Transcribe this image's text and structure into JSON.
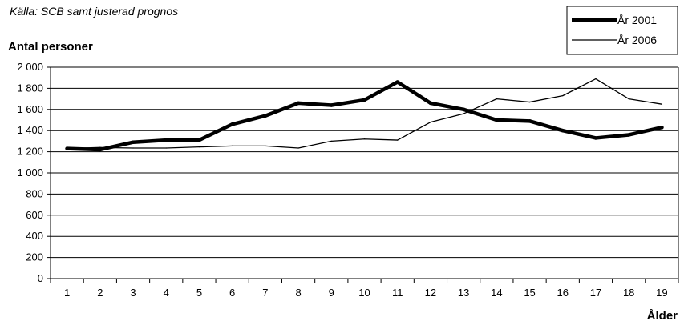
{
  "chart_data": {
    "type": "line",
    "source": "Källa: SCB samt justerad prognos",
    "ylabel": "Antal personer",
    "xlabel": "Ålder",
    "ylim": [
      0,
      2000
    ],
    "yticks": [
      0,
      200,
      400,
      600,
      800,
      1000,
      1200,
      1400,
      1600,
      1800,
      2000
    ],
    "ytick_labels": [
      "0",
      "200",
      "400",
      "600",
      "800",
      "1 000",
      "1 200",
      "1 400",
      "1 600",
      "1 800",
      "2 000"
    ],
    "x": [
      1,
      2,
      3,
      4,
      5,
      6,
      7,
      8,
      9,
      10,
      11,
      12,
      13,
      14,
      15,
      16,
      17,
      18,
      19
    ],
    "grid": "horizontal",
    "legend_position": "top-right",
    "series": [
      {
        "name": "År 2001",
        "color": "#000000",
        "style": "thick",
        "values": [
          1230,
          1220,
          1290,
          1310,
          1310,
          1460,
          1540,
          1660,
          1640,
          1690,
          1860,
          1660,
          1600,
          1500,
          1490,
          1400,
          1330,
          1360,
          1430
        ]
      },
      {
        "name": "År 2006",
        "color": "#000000",
        "style": "thin",
        "values": [
          1230,
          1240,
          1235,
          1235,
          1245,
          1255,
          1255,
          1235,
          1300,
          1320,
          1310,
          1480,
          1560,
          1700,
          1670,
          1730,
          1890,
          1700,
          1650
        ]
      }
    ]
  }
}
